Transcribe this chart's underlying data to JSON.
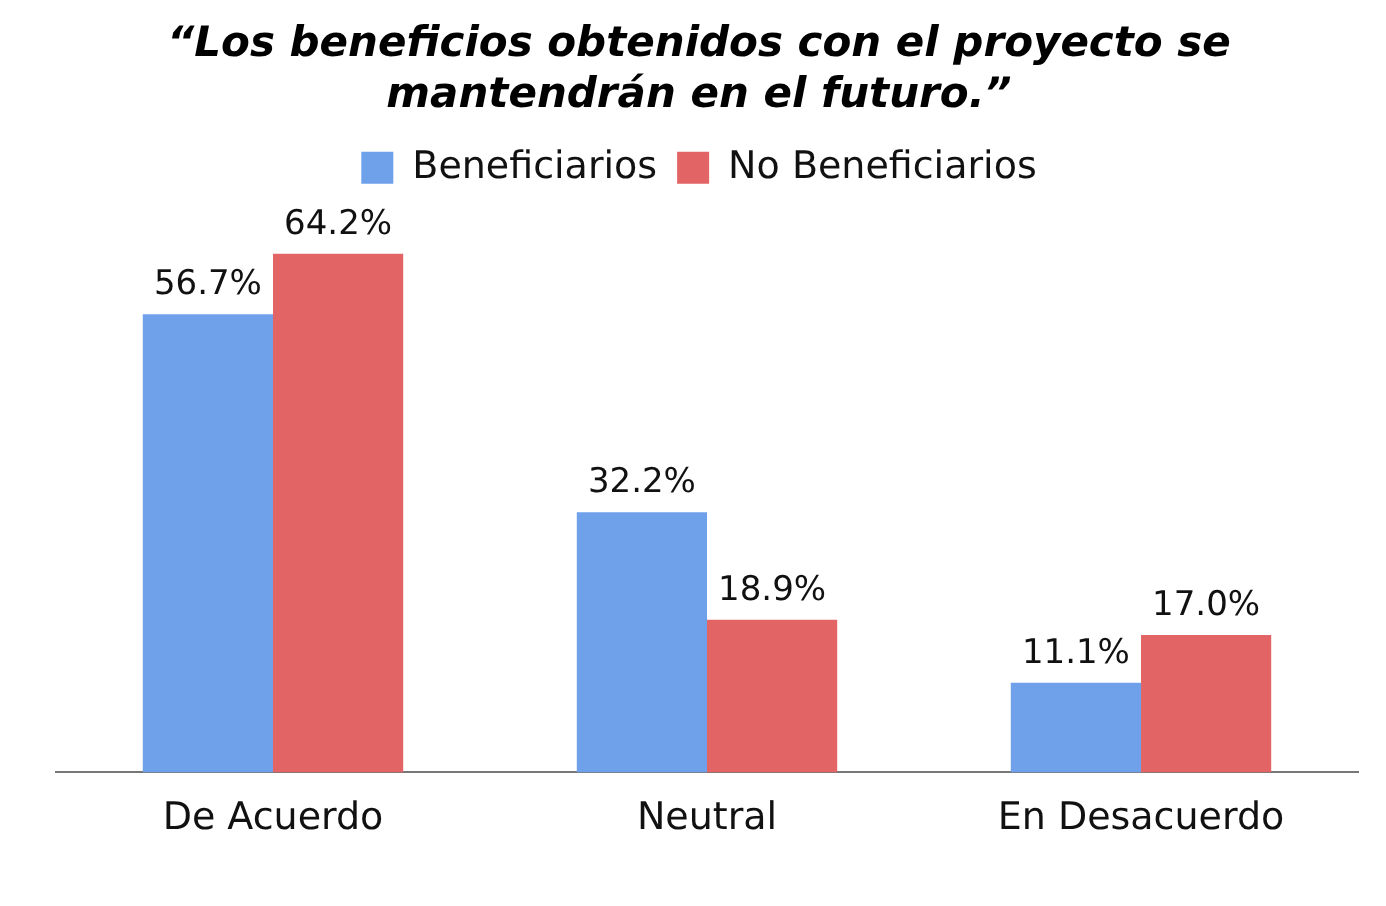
{
  "chart_data": {
    "type": "bar",
    "title": [
      "“Los beneficios obtenidos con el proyecto se",
      "mantendrán en el futuro.”"
    ],
    "categories": [
      "De Acuerdo",
      "Neutral",
      "En Desacuerdo"
    ],
    "series": [
      {
        "name": "Beneficiarios",
        "color": "#6fa0ea",
        "values": [
          56.7,
          32.2,
          11.1
        ],
        "value_labels": [
          "56.7%",
          "32.2%",
          "11.1%"
        ]
      },
      {
        "name": "No Beneficiarios",
        "color": "#e36464",
        "values": [
          64.2,
          18.9,
          17.0
        ],
        "value_labels": [
          "64.2%",
          "18.9%",
          "17.0%"
        ]
      }
    ],
    "legend": "top",
    "grid": false
  }
}
